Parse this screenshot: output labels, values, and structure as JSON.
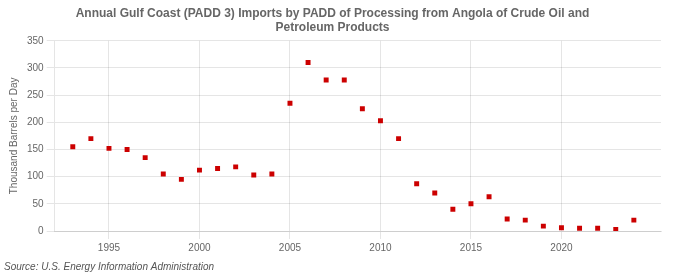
{
  "chart_data": {
    "type": "scatter",
    "title": "Annual Gulf Coast (PADD 3) Imports by PADD of Processing from Angola of Crude Oil and\nPetroleum Products",
    "ylabel": "Thousand Barrels per Day",
    "annotations": [
      "Source: U.S. Energy Information Administration"
    ],
    "x": [
      1993,
      1994,
      1995,
      1996,
      1997,
      1998,
      1999,
      2000,
      2001,
      2002,
      2003,
      2004,
      2005,
      2006,
      2007,
      2008,
      2009,
      2010,
      2011,
      2012,
      2013,
      2014,
      2015,
      2016,
      2017,
      2018,
      2019,
      2020,
      2021,
      2022,
      2023,
      2024
    ],
    "values": [
      155,
      170,
      152,
      150,
      135,
      105,
      95,
      112,
      115,
      118,
      103,
      105,
      235,
      310,
      278,
      278,
      225,
      203,
      170,
      87,
      70,
      40,
      50,
      63,
      22,
      20,
      9,
      6,
      5,
      5,
      3,
      20
    ],
    "color": "#cc0000",
    "marker": "square",
    "xlim": [
      1992.0,
      2025.5
    ],
    "ylim": [
      0,
      350
    ],
    "xticks": [
      1995,
      2000,
      2005,
      2010,
      2015,
      2020
    ],
    "yticks": [
      0,
      50,
      100,
      150,
      200,
      250,
      300,
      350
    ],
    "grid": true
  }
}
